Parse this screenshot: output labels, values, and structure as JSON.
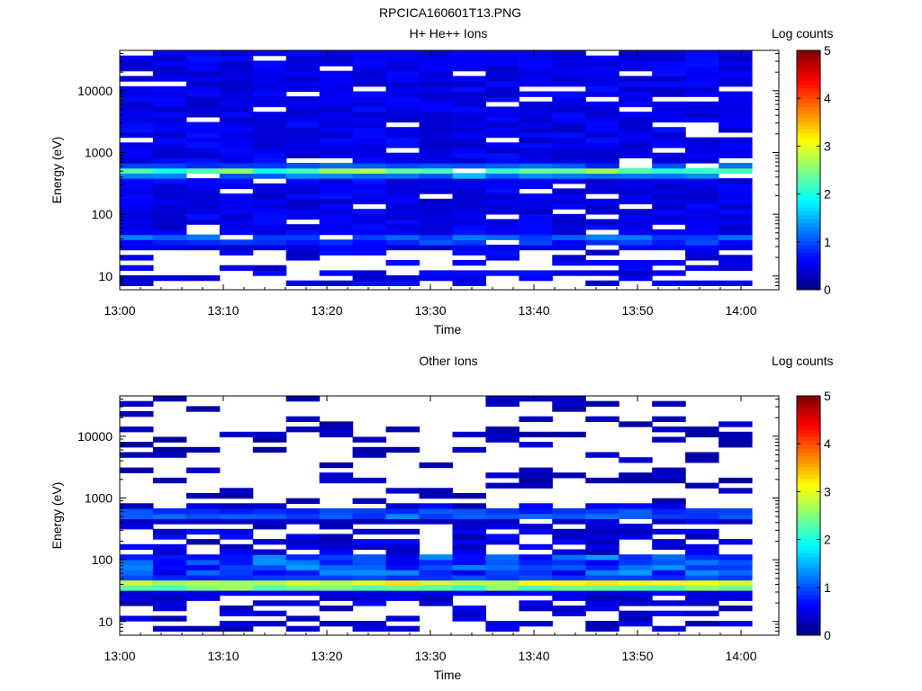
{
  "figure_title": "RPCICA160601T13.PNG",
  "chart_data": [
    {
      "type": "heatmap",
      "title": "H+ He++ Ions",
      "xlabel": "Time",
      "ylabel": "Energy (eV)",
      "x_ticks": [
        "13:00",
        "13:10",
        "13:20",
        "13:30",
        "13:40",
        "13:50",
        "14:00"
      ],
      "y_scale": "log",
      "y_ticks": [
        "10",
        "100",
        "1000",
        "10000"
      ],
      "ylim": [
        6,
        45000
      ],
      "colorbar": {
        "label": "Log counts",
        "range": [
          0,
          5
        ],
        "ticks": [
          "0",
          "1",
          "2",
          "3",
          "4",
          "5"
        ]
      },
      "background": "#ffffff",
      "peak_band": {
        "energy_ev": 500,
        "log_counts": 2.6
      },
      "secondary_band": {
        "energy_ev": 40,
        "log_counts": 1.4
      }
    },
    {
      "type": "heatmap",
      "title": "Other Ions",
      "xlabel": "Time",
      "ylabel": "Energy (eV)",
      "x_ticks": [
        "13:00",
        "13:10",
        "13:20",
        "13:30",
        "13:40",
        "13:50",
        "14:00"
      ],
      "y_scale": "log",
      "y_ticks": [
        "10",
        "100",
        "1000",
        "10000"
      ],
      "ylim": [
        6,
        45000
      ],
      "colorbar": {
        "label": "Log counts",
        "range": [
          0,
          5
        ],
        "ticks": [
          "0",
          "1",
          "2",
          "3",
          "4",
          "5"
        ]
      },
      "background": "#ffffff",
      "peak_band": {
        "energy_ev": 40,
        "log_counts": 3.5
      },
      "secondary_band": {
        "energy_ev": 550,
        "log_counts": 1.3
      }
    }
  ],
  "colormap": "jet"
}
